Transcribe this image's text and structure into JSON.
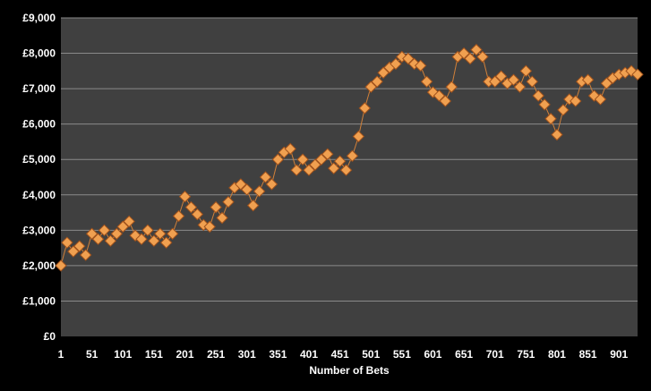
{
  "chart_data": {
    "type": "line",
    "title": "",
    "xlabel": "Number of Bets",
    "ylabel": "",
    "xlim": [
      1,
      931
    ],
    "ylim": [
      0,
      9000
    ],
    "grid": true,
    "legend": "none",
    "x_ticks": [
      "1",
      "51",
      "101",
      "151",
      "201",
      "251",
      "301",
      "351",
      "401",
      "451",
      "501",
      "551",
      "601",
      "651",
      "701",
      "751",
      "801",
      "851",
      "901"
    ],
    "y_ticks": [
      "£0",
      "£1,000",
      "£2,000",
      "£3,000",
      "£4,000",
      "£5,000",
      "£6,000",
      "£7,000",
      "£8,000",
      "£9,000"
    ],
    "series": [
      {
        "name": "",
        "marker": "diamond",
        "color": "#f0a050",
        "x": [
          1,
          11,
          21,
          31,
          41,
          51,
          61,
          71,
          81,
          91,
          101,
          111,
          121,
          131,
          141,
          151,
          161,
          171,
          181,
          191,
          201,
          211,
          221,
          231,
          241,
          251,
          261,
          271,
          281,
          291,
          301,
          311,
          321,
          331,
          341,
          351,
          361,
          371,
          381,
          391,
          401,
          411,
          421,
          431,
          441,
          451,
          461,
          471,
          481,
          491,
          501,
          511,
          521,
          531,
          541,
          551,
          561,
          571,
          581,
          591,
          601,
          611,
          621,
          631,
          641,
          651,
          661,
          671,
          681,
          691,
          701,
          711,
          721,
          731,
          741,
          751,
          761,
          771,
          781,
          791,
          801,
          811,
          821,
          831,
          841,
          851,
          861,
          871,
          881,
          891,
          901,
          911,
          921,
          931
        ],
        "y": [
          2000,
          2650,
          2400,
          2550,
          2300,
          2900,
          2750,
          3000,
          2700,
          2900,
          3100,
          3250,
          2850,
          2750,
          3000,
          2700,
          2900,
          2650,
          2900,
          3400,
          3950,
          3650,
          3450,
          3150,
          3100,
          3650,
          3350,
          3800,
          4200,
          4300,
          4150,
          3700,
          4100,
          4500,
          4300,
          5000,
          5200,
          5300,
          4700,
          5000,
          4700,
          4850,
          5000,
          5150,
          4750,
          4950,
          4700,
          5100,
          5650,
          6450,
          7050,
          7200,
          7450,
          7600,
          7700,
          7900,
          7850,
          7700,
          7650,
          7200,
          6900,
          6800,
          6650,
          7050,
          7900,
          8000,
          7850,
          8100,
          7900,
          7200,
          7200,
          7350,
          7150,
          7250,
          7050,
          7500,
          7200,
          6800,
          6550,
          6150,
          5700,
          6400,
          6700,
          6650,
          7200,
          7250,
          6800,
          6700,
          7150,
          7300,
          7400,
          7450,
          7500,
          7400
        ]
      }
    ]
  }
}
